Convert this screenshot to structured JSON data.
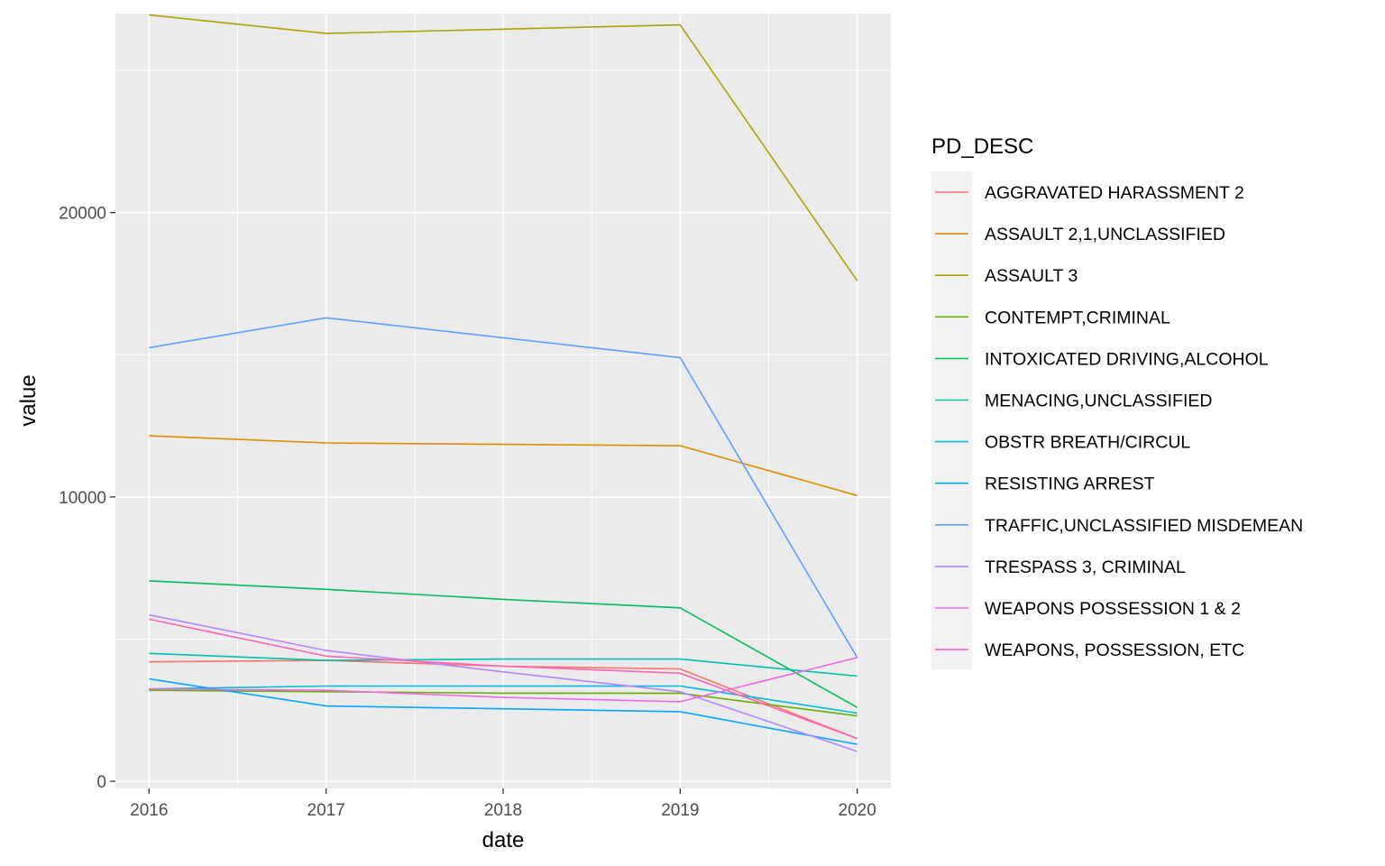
{
  "chart_data": {
    "type": "line",
    "xlabel": "date",
    "ylabel": "value",
    "x": [
      2016,
      2017,
      2018,
      2019,
      2020
    ],
    "xlim": [
      2015.81,
      2020.19
    ],
    "ylim": [
      -250,
      27000
    ],
    "y_ticks": [
      0,
      10000,
      20000
    ],
    "y_tick_labels": [
      "0",
      "10000",
      "20000"
    ],
    "x_tick_labels": [
      "2016",
      "2017",
      "2018",
      "2019",
      "2020"
    ],
    "grid": true,
    "legend": {
      "title": "PD_DESC",
      "position": "right"
    },
    "series": [
      {
        "name": "AGGRAVATED HARASSMENT 2",
        "color": "#F8766D",
        "values": [
          4200,
          4250,
          4050,
          3950,
          1500
        ]
      },
      {
        "name": "ASSAULT 2,1,UNCLASSIFIED",
        "color": "#DB8E00",
        "values": [
          12150,
          11900,
          11850,
          11800,
          10050
        ]
      },
      {
        "name": "ASSAULT 3",
        "color": "#AEA200",
        "values": [
          26950,
          26300,
          26450,
          26600,
          17600
        ]
      },
      {
        "name": "CONTEMPT,CRIMINAL",
        "color": "#64B200",
        "values": [
          3200,
          3150,
          3100,
          3100,
          2300
        ]
      },
      {
        "name": "INTOXICATED DRIVING,ALCOHOL",
        "color": "#00BD5C",
        "values": [
          7050,
          6750,
          6400,
          6100,
          2600
        ]
      },
      {
        "name": "MENACING,UNCLASSIFIED",
        "color": "#00C1A7",
        "values": [
          4500,
          4250,
          4300,
          4300,
          3700
        ]
      },
      {
        "name": "OBSTR BREATH/CIRCUL",
        "color": "#00BADE",
        "values": [
          3250,
          3350,
          3350,
          3350,
          2400
        ]
      },
      {
        "name": "RESISTING ARREST",
        "color": "#00A6FF",
        "values": [
          3600,
          2650,
          2550,
          2450,
          1300
        ]
      },
      {
        "name": "TRAFFIC,UNCLASSIFIED MISDEMEAN",
        "color": "#619CFF",
        "values": [
          15250,
          16300,
          15600,
          14900,
          4350
        ]
      },
      {
        "name": "TRESPASS 3, CRIMINAL",
        "color": "#B385FF",
        "values": [
          5850,
          4600,
          3850,
          3150,
          1050
        ]
      },
      {
        "name": "WEAPONS POSSESSION 1 & 2",
        "color": "#EF67EB",
        "values": [
          3250,
          3200,
          2950,
          2800,
          4350
        ]
      },
      {
        "name": "WEAPONS, POSSESSION, ETC",
        "color": "#FF63B6",
        "values": [
          5700,
          4400,
          4050,
          3800,
          1500
        ]
      }
    ]
  }
}
